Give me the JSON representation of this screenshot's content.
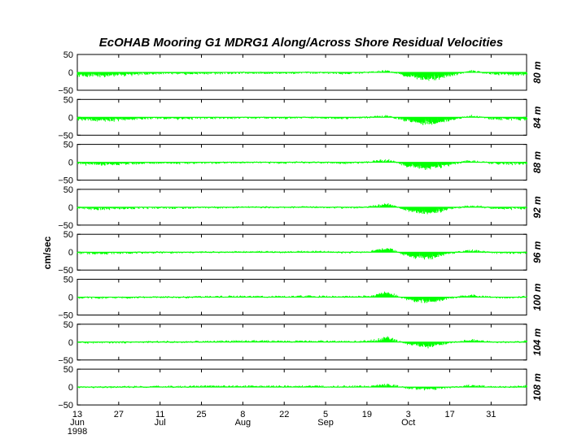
{
  "chart_data": {
    "type": "area",
    "title": "EcOHAB Mooring G1   MDRG1   Along/Across Shore Residual Velocities",
    "ylabel": "cm/sec",
    "xlabel": "",
    "ylim": [
      -50,
      50
    ],
    "yticks": [
      50,
      0,
      -50
    ],
    "series_color": "#00ff00",
    "x_range": [
      "1998-06-13",
      "1998-11-12"
    ],
    "x_ticks": [
      {
        "day": "13",
        "month": "Jun",
        "year": "1998",
        "date": "1998-06-13"
      },
      {
        "day": "27",
        "month": "",
        "year": "",
        "date": "1998-06-27"
      },
      {
        "day": "11",
        "month": "Jul",
        "year": "",
        "date": "1998-07-11"
      },
      {
        "day": "25",
        "month": "",
        "year": "",
        "date": "1998-07-25"
      },
      {
        "day": "8",
        "month": "Aug",
        "year": "",
        "date": "1998-08-08"
      },
      {
        "day": "22",
        "month": "",
        "year": "",
        "date": "1998-08-22"
      },
      {
        "day": "5",
        "month": "Sep",
        "year": "",
        "date": "1998-09-05"
      },
      {
        "day": "19",
        "month": "",
        "year": "",
        "date": "1998-09-19"
      },
      {
        "day": "3",
        "month": "Oct",
        "year": "",
        "date": "1998-10-03"
      },
      {
        "day": "17",
        "month": "",
        "year": "",
        "date": "1998-10-17"
      },
      {
        "day": "31",
        "month": "",
        "year": "",
        "date": "1998-10-31"
      }
    ],
    "panels": [
      {
        "depth": "80 m",
        "start": "1998-06-13",
        "step_days": 7,
        "values": [
          -10,
          -12,
          -10,
          -6,
          -4,
          -6,
          -4,
          -3,
          -2,
          -2,
          -3,
          -1,
          -2,
          -5,
          0,
          5,
          -15,
          -25,
          -12,
          5,
          -5,
          -8,
          -8
        ]
      },
      {
        "depth": "84 m",
        "start": "1998-06-13",
        "step_days": 7,
        "values": [
          -8,
          -11,
          -9,
          -5,
          -3,
          -5,
          -3,
          -3,
          -2,
          -2,
          -3,
          -1,
          -2,
          -4,
          0,
          4,
          -14,
          -22,
          -10,
          5,
          -5,
          -7,
          -7
        ]
      },
      {
        "depth": "88 m",
        "start": "1998-06-13",
        "step_days": 7,
        "values": [
          -6,
          -9,
          -7,
          -4,
          -2,
          -4,
          -2,
          -2,
          -1,
          -1,
          -2,
          0,
          -1,
          -3,
          0,
          8,
          -14,
          -22,
          -8,
          6,
          -4,
          -6,
          -6
        ]
      },
      {
        "depth": "92 m",
        "start": "1998-06-13",
        "step_days": 7,
        "values": [
          -4,
          -7,
          -5,
          -3,
          -2,
          -3,
          -1,
          -1,
          0,
          0,
          -1,
          1,
          0,
          -2,
          0,
          12,
          -14,
          -22,
          -6,
          6,
          -3,
          -5,
          -4
        ]
      },
      {
        "depth": "96 m",
        "start": "1998-06-13",
        "step_days": 7,
        "values": [
          -3,
          -5,
          -3,
          -2,
          -1,
          -2,
          0,
          0,
          1,
          1,
          0,
          2,
          1,
          -1,
          1,
          14,
          -14,
          -20,
          -4,
          6,
          -2,
          -3,
          -2
        ]
      },
      {
        "depth": "100 m",
        "start": "1998-06-13",
        "step_days": 7,
        "values": [
          -2,
          -3,
          -2,
          -1,
          0,
          -1,
          1,
          2,
          2,
          2,
          1,
          3,
          2,
          1,
          2,
          16,
          -10,
          -18,
          -3,
          7,
          -1,
          -2,
          4
        ]
      },
      {
        "depth": "104 m",
        "start": "1998-06-13",
        "step_days": 7,
        "values": [
          -1,
          -2,
          -1,
          0,
          1,
          0,
          2,
          3,
          3,
          3,
          2,
          3,
          2,
          1,
          3,
          15,
          -8,
          -16,
          -2,
          7,
          0,
          -1,
          5
        ]
      },
      {
        "depth": "108 m",
        "start": "1998-06-13",
        "step_days": 7,
        "values": [
          0,
          -1,
          0,
          1,
          2,
          1,
          3,
          3,
          3,
          3,
          2,
          3,
          2,
          2,
          3,
          10,
          -4,
          -8,
          -1,
          5,
          1,
          0,
          4
        ]
      }
    ]
  }
}
